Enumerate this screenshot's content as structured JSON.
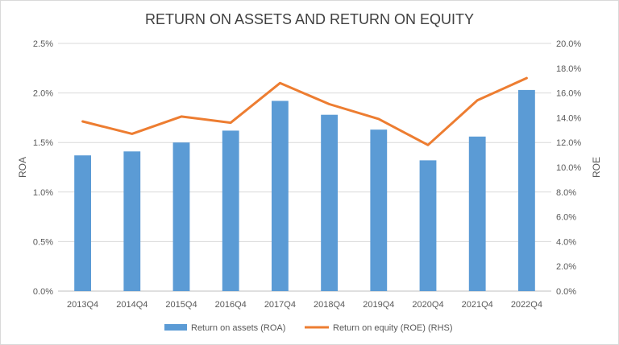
{
  "chart_data": {
    "type": "bar",
    "title": "RETURN ON ASSETS AND RETURN ON EQUITY",
    "categories": [
      "2013Q4",
      "2014Q4",
      "2015Q4",
      "2016Q4",
      "2017Q4",
      "2018Q4",
      "2019Q4",
      "2020Q4",
      "2021Q4",
      "2022Q4"
    ],
    "series": [
      {
        "name": "Return on assets (ROA)",
        "type": "bar",
        "axis": "left",
        "color": "#5B9BD5",
        "values": [
          1.37,
          1.41,
          1.5,
          1.62,
          1.92,
          1.78,
          1.63,
          1.32,
          1.56,
          2.03
        ]
      },
      {
        "name": "Return on equity (ROE) (RHS)",
        "type": "line",
        "axis": "right",
        "color": "#ED7D31",
        "values": [
          13.7,
          12.7,
          14.1,
          13.6,
          16.8,
          15.1,
          13.9,
          11.8,
          15.4,
          17.2
        ]
      }
    ],
    "ylabel": "ROA",
    "ylabel_right": "ROE",
    "ylim": [
      0,
      2.5
    ],
    "ylim_right": [
      0,
      20
    ],
    "yticks": [
      "0.0%",
      "0.5%",
      "1.0%",
      "1.5%",
      "2.0%",
      "2.5%"
    ],
    "yticks_right": [
      "0.0%",
      "2.0%",
      "4.0%",
      "6.0%",
      "8.0%",
      "10.0%",
      "12.0%",
      "14.0%",
      "16.0%",
      "18.0%",
      "20.0%"
    ],
    "grid": true,
    "legend": "bottom-center"
  }
}
